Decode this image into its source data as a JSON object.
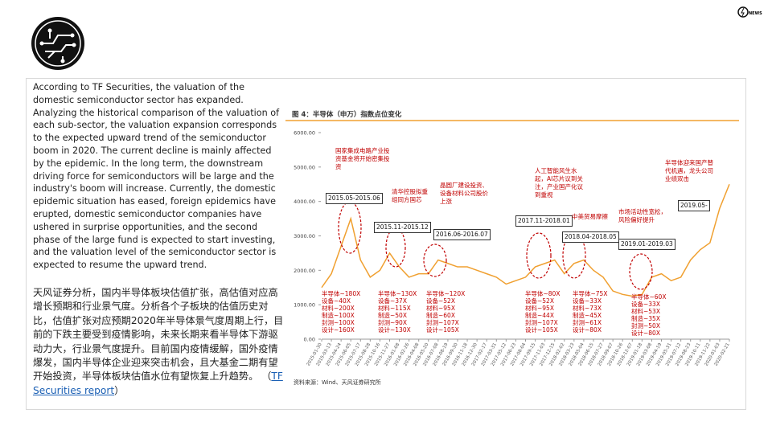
{
  "slide": {
    "badge": "NEWS",
    "english": "According to TF Securities, the valuation of the domestic semiconductor sector has expanded. Analyzing the historical comparison of the valuation of each sub-sector, the valuation expansion corresponds to the expected upward trend of the semiconductor boom in 2020. The current decline is mainly affected by the epidemic. In the long term, the downstream driving force for semiconductors will be large and the industry's boom will increase. Currently, the domestic epidemic situation has eased, foreign epidemics have erupted, domestic semiconductor companies have ushered in surprise opportunities, and the second phase of the large fund is expected to start investing, and the valuation level of the semiconductor sector is expected to resume the upward trend.",
    "chinese": "天风证券分析，国内半导体板块估值扩张，高估值对应高增长预期和行业景气度。分析各个子板块的估值历史对比，估值扩张对应预期2020年半导体景气度周期上行，目前的下跌主要受到疫情影响，未来长期来看半导体下游驱动力大，行业景气度提升。目前国内疫情缓解，国外疫情爆发，国内半导体企业迎来突击机会，且大基金二期有望开始投资，半导体板块估值水位有望恢复上升趋势。",
    "paren_open": "（",
    "link": "TF Securities report",
    "paren_close": "）"
  },
  "chart_data": {
    "type": "line",
    "title": "图 4：半导体（申万）指数点位变化",
    "source": "资料来源：Wind、天风证券研究所",
    "color": "#f0a030",
    "categories": [
      "2015-01-30",
      "2015-03-13",
      "2015-04-24",
      "2015-06-05",
      "2015-07-17",
      "2015-08-28",
      "2015-10-16",
      "2015-11-27",
      "2016-01-08",
      "2016-02-26",
      "2016-04-08",
      "2016-05-20",
      "2016-07-08",
      "2016-08-19",
      "2016-09-30",
      "2016-11-18",
      "2016-12-30",
      "2017-02-17",
      "2017-03-31",
      "2017-05-12",
      "2017-06-23",
      "2017-08-04",
      "2017-09-15",
      "2017-11-03",
      "2017-12-15",
      "2018-02-02",
      "2018-03-23",
      "2018-05-04",
      "2018-06-15",
      "2018-07-27",
      "2018-09-07",
      "2018-10-26",
      "2018-12-07",
      "2019-01-18",
      "2019-03-08",
      "2019-04-19",
      "2019-05-31",
      "2019-07-12",
      "2019-08-23",
      "2019-10-11",
      "2019-11-22",
      "2020-01-03",
      "2020-02-21"
    ],
    "values": [
      1500,
      1900,
      2700,
      3500,
      2300,
      1800,
      2000,
      2500,
      2100,
      1800,
      1900,
      1900,
      2300,
      2200,
      2100,
      2100,
      2000,
      1900,
      1800,
      1600,
      1700,
      1800,
      2100,
      2200,
      2300,
      1900,
      2200,
      2300,
      2000,
      1800,
      1400,
      1300,
      1250,
      1300,
      1800,
      1900,
      1700,
      1800,
      2300,
      2600,
      2800,
      3800,
      4500
    ],
    "ylim": [
      0,
      6000
    ],
    "yticks": [
      {
        "value": 0,
        "label": "0.00"
      },
      {
        "value": 1000,
        "label": "1000.00"
      },
      {
        "value": 2000,
        "label": "2000.00"
      },
      {
        "value": 3000,
        "label": "3000.00"
      },
      {
        "value": 4000,
        "label": "4000.00"
      },
      {
        "value": 5000,
        "label": "5000.00"
      },
      {
        "value": 6000,
        "label": "6000.00"
      }
    ],
    "annotations": [
      "国家集成电路产业投资基金将开始密集投资",
      "2015.05-2015.06",
      "清华控股拟重组同方国芯",
      "2015.11-2015.12",
      "晶圆厂建设投资、设备材料公司股价上涨",
      "2016.06-2016.07",
      "人工智能风生水起，AI芯片议到关注，产业国产化议到重视",
      "2017.11-2018.01",
      "中美贸易摩擦",
      "2018.04-2018.05",
      "市场活动性宽松，风险偏好提升",
      "2019.01-2019.03",
      "半导体迎来国产替代机遇，龙头公司业绩双击",
      "2019.05-"
    ],
    "valuations": [
      [
        "半导体~180X",
        "设备~40X",
        "材料~200X",
        "制造~100X",
        "封测~100X",
        "设计~160X"
      ],
      [
        "半导体~130X",
        "设备~37X",
        "材料~115X",
        "制造~50X",
        "封测~90X",
        "设计~130X"
      ],
      [
        "半导体~120X",
        "设备~52X",
        "材料~95X",
        "制造~60X",
        "封测~107X",
        "设计~105X"
      ],
      [
        "半导体~80X",
        "设备~52X",
        "材料~95X",
        "制造~44X",
        "封测~107X",
        "设计~105X"
      ],
      [
        "半导体~75X",
        "设备~33X",
        "材料~73X",
        "制造~45X",
        "封测~61X",
        "设计~80X"
      ],
      [
        "半导体~60X",
        "设备~33X",
        "材料~53X",
        "制造~35X",
        "封测~50X",
        "设计~80X"
      ]
    ]
  }
}
